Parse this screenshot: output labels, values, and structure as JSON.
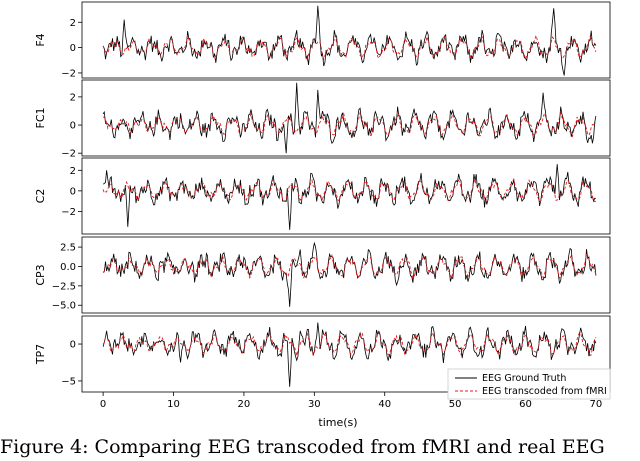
{
  "chart_data": {
    "type": "line",
    "xlabel": "time(s)",
    "xlim": [
      -3,
      72
    ],
    "xticks": [
      0,
      10,
      20,
      30,
      40,
      50,
      60,
      70
    ],
    "legend": {
      "placement": "bottom-right",
      "entries": [
        "EEG Ground Truth",
        "EEG transcoded from fMRI"
      ]
    },
    "series_style": [
      {
        "name": "EEG Ground Truth",
        "color": "#000000",
        "dash": "solid"
      },
      {
        "name": "EEG transcoded from fMRI",
        "color": "#e41a1c",
        "dash": "dashed"
      }
    ],
    "panels": [
      {
        "ylabel": "F4",
        "ylim": [
          -2.4,
          3.6
        ],
        "yticks": [
          -2,
          0,
          2
        ],
        "ytick_labels": [
          "−2",
          "0",
          "2"
        ],
        "spikes": [
          [
            3,
            2.2
          ],
          [
            30.5,
            3.3
          ],
          [
            64,
            3.1
          ],
          [
            65.5,
            -2.2
          ]
        ]
      },
      {
        "ylabel": "FC1",
        "ylim": [
          -2.2,
          3.2
        ],
        "yticks": [
          -2,
          0,
          2
        ],
        "ytick_labels": [
          "−2",
          "0",
          "2"
        ],
        "spikes": [
          [
            27.5,
            3.0
          ],
          [
            26,
            -2.0
          ],
          [
            30.5,
            2.5
          ],
          [
            62.5,
            2.3
          ],
          [
            69.5,
            -1.3
          ]
        ]
      },
      {
        "ylabel": "C2",
        "ylim": [
          -4.2,
          3.2
        ],
        "yticks": [
          -2,
          0,
          2
        ],
        "ytick_labels": [
          "−2",
          "0",
          "2"
        ],
        "spikes": [
          [
            3.5,
            -3.5
          ],
          [
            26.5,
            -3.8
          ],
          [
            64.5,
            2.6
          ],
          [
            0.5,
            2.0
          ]
        ]
      },
      {
        "ylabel": "CP3",
        "ylim": [
          -6.0,
          3.8
        ],
        "yticks": [
          -5,
          -2.5,
          0,
          2.5
        ],
        "ytick_labels": [
          "−5.0",
          "−2.5",
          "0.0",
          "2.5"
        ],
        "spikes": [
          [
            26.5,
            -5.2
          ],
          [
            30,
            3.0
          ],
          [
            28,
            2.2
          ],
          [
            25.5,
            -1.8
          ]
        ]
      },
      {
        "ylabel": "TP7",
        "ylim": [
          -6.5,
          3.8
        ],
        "yticks": [
          -5,
          0
        ],
        "ytick_labels": [
          "−5",
          "0"
        ],
        "spikes": [
          [
            26.5,
            -5.8
          ],
          [
            30.5,
            2.9
          ],
          [
            11,
            -2.5
          ],
          [
            28,
            1.8
          ]
        ]
      }
    ]
  },
  "caption": "Figure 4: Comparing EEG transcoded from fMRI and real EEG"
}
